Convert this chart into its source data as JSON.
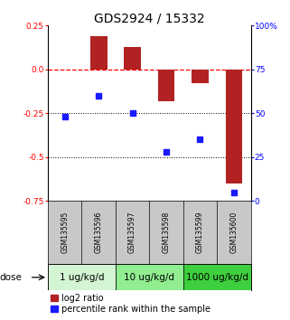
{
  "title": "GDS2924 / 15332",
  "samples": [
    "GSM135595",
    "GSM135596",
    "GSM135597",
    "GSM135598",
    "GSM135599",
    "GSM135600"
  ],
  "log2_ratios": [
    0.0,
    0.19,
    0.13,
    -0.18,
    -0.08,
    -0.65
  ],
  "percentile_ranks": [
    48,
    60,
    50,
    28,
    35,
    5
  ],
  "ylim_left": [
    -0.75,
    0.25
  ],
  "ylim_right": [
    0,
    100
  ],
  "yticks_left": [
    0.25,
    0.0,
    -0.25,
    -0.5,
    -0.75
  ],
  "yticks_right": [
    100,
    75,
    50,
    25,
    0
  ],
  "dose_groups": [
    {
      "label": "1 ug/kg/d",
      "samples": [
        0,
        1
      ],
      "color": "#d4f5d4"
    },
    {
      "label": "10 ug/kg/d",
      "samples": [
        2,
        3
      ],
      "color": "#90ee90"
    },
    {
      "label": "1000 ug/kg/d",
      "samples": [
        4,
        5
      ],
      "color": "#3ecf3e"
    }
  ],
  "bar_color": "#b22222",
  "dot_color": "#1a1aff",
  "bar_width": 0.5,
  "dot_size": 22,
  "background_color": "#ffffff",
  "sample_box_color": "#c8c8c8",
  "title_fontsize": 10,
  "tick_fontsize": 6.5,
  "sample_fontsize": 5.5,
  "label_fontsize": 7.5,
  "legend_fontsize": 7,
  "dose_label_fontsize": 7.5
}
